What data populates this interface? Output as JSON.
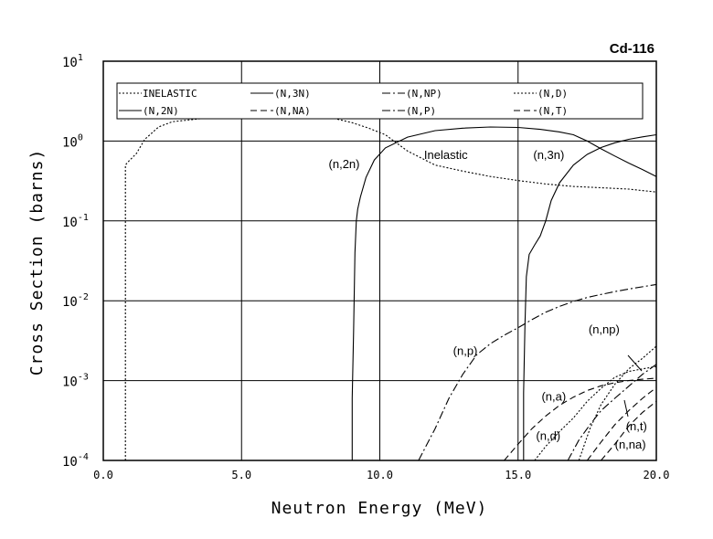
{
  "chart_data": {
    "type": "line",
    "title": "Cd-116",
    "xlabel": "Neutron Energy (MeV)",
    "ylabel": "Cross Section (barns)",
    "xlim": [
      0.0,
      20.0
    ],
    "ylim": [
      0.0001,
      10
    ],
    "yscale": "log",
    "grid": true,
    "legend_position": "top",
    "xticks": [
      "0.0",
      "5.0",
      "10.0",
      "15.0",
      "20.0"
    ],
    "yticks": [
      {
        "base": "10",
        "exp": "1",
        "value": 10
      },
      {
        "base": "10",
        "exp": "0",
        "value": 1
      },
      {
        "base": "10",
        "exp": "-1",
        "value": 0.1
      },
      {
        "base": "10",
        "exp": "-2",
        "value": 0.01
      },
      {
        "base": "10",
        "exp": "-3",
        "value": 0.001
      },
      {
        "base": "10",
        "exp": "-4",
        "value": 0.0001
      }
    ],
    "legend": [
      {
        "label": "INELASTIC",
        "dash": "dotted"
      },
      {
        "label": "(N,3N)",
        "dash": "solid"
      },
      {
        "label": "(N,NP)",
        "dash": "dashdot"
      },
      {
        "label": "(N,D)",
        "dash": "dotted"
      },
      {
        "label": "(N,2N)",
        "dash": "solid"
      },
      {
        "label": "(N,NA)",
        "dash": "dashed"
      },
      {
        "label": "(N,P)",
        "dash": "dashdot"
      },
      {
        "label": "(N,T)",
        "dash": "dashed"
      }
    ],
    "annotations": [
      {
        "text": "Inelastic",
        "x": 11.6,
        "y": 0.6
      },
      {
        "text": "(n,2n)",
        "x": 8.15,
        "y": 0.46
      },
      {
        "text": "(n,3n)",
        "x": 15.55,
        "y": 0.6
      },
      {
        "text": "(n,p)",
        "x": 12.65,
        "y": 0.0021
      },
      {
        "text": "(n,np)",
        "x": 17.55,
        "y": 0.0039
      },
      {
        "text": "(n,a)",
        "x": 15.85,
        "y": 0.00056
      },
      {
        "text": "(n,d)",
        "x": 15.65,
        "y": 0.00018
      },
      {
        "text": "(n,t)",
        "x": 18.9,
        "y": 0.00024
      },
      {
        "text": "(n,na)",
        "x": 18.5,
        "y": 0.00014
      }
    ],
    "series": [
      {
        "dash": "dotted",
        "points": [
          [
            0.8,
            0.0001
          ],
          [
            0.8,
            0.5
          ],
          [
            0.9,
            0.55
          ],
          [
            1.2,
            0.7
          ],
          [
            1.5,
            1.05
          ],
          [
            2.0,
            1.5
          ],
          [
            2.5,
            1.75
          ],
          [
            3.5,
            1.9
          ],
          [
            5.0,
            2.0
          ],
          [
            6.5,
            1.98
          ],
          [
            7.5,
            1.93
          ],
          [
            8.4,
            1.9
          ],
          [
            9.0,
            1.7
          ],
          [
            9.6,
            1.45
          ],
          [
            10.2,
            1.2
          ],
          [
            11.0,
            0.75
          ],
          [
            12.0,
            0.5
          ],
          [
            13.0,
            0.42
          ],
          [
            14.0,
            0.36
          ],
          [
            15.0,
            0.32
          ],
          [
            16.0,
            0.29
          ],
          [
            17.0,
            0.27
          ],
          [
            18.0,
            0.26
          ],
          [
            19.0,
            0.25
          ],
          [
            20.0,
            0.23
          ]
        ]
      },
      {
        "dash": "solid",
        "points": [
          [
            9.0,
            0.0001
          ],
          [
            9.0,
            0.0006
          ],
          [
            9.05,
            0.004
          ],
          [
            9.1,
            0.04
          ],
          [
            9.15,
            0.1
          ],
          [
            9.2,
            0.14
          ],
          [
            9.3,
            0.2
          ],
          [
            9.5,
            0.35
          ],
          [
            9.8,
            0.58
          ],
          [
            10.2,
            0.82
          ],
          [
            11.0,
            1.12
          ],
          [
            12.0,
            1.35
          ],
          [
            13.0,
            1.45
          ],
          [
            14.0,
            1.5
          ],
          [
            15.0,
            1.48
          ],
          [
            15.8,
            1.4
          ],
          [
            16.5,
            1.3
          ],
          [
            17.0,
            1.2
          ],
          [
            17.5,
            1.0
          ],
          [
            18.0,
            0.8
          ],
          [
            18.5,
            0.65
          ],
          [
            19.0,
            0.53
          ],
          [
            19.5,
            0.44
          ],
          [
            20.0,
            0.36
          ]
        ]
      },
      {
        "dash": "solid",
        "points": [
          [
            15.2,
            0.0001
          ],
          [
            15.2,
            0.0007
          ],
          [
            15.25,
            0.005
          ],
          [
            15.3,
            0.02
          ],
          [
            15.4,
            0.038
          ],
          [
            15.6,
            0.05
          ],
          [
            15.8,
            0.065
          ],
          [
            16.0,
            0.1
          ],
          [
            16.2,
            0.18
          ],
          [
            16.5,
            0.3
          ],
          [
            17.0,
            0.5
          ],
          [
            17.5,
            0.68
          ],
          [
            18.0,
            0.83
          ],
          [
            18.5,
            0.95
          ],
          [
            19.0,
            1.05
          ],
          [
            19.5,
            1.13
          ],
          [
            20.0,
            1.2
          ]
        ]
      },
      {
        "dash": "dashdot",
        "points": [
          [
            11.4,
            0.0001
          ],
          [
            12.0,
            0.00025
          ],
          [
            12.5,
            0.0006
          ],
          [
            13.0,
            0.0012
          ],
          [
            13.5,
            0.0021
          ],
          [
            14.0,
            0.0029
          ],
          [
            14.5,
            0.0037
          ],
          [
            15.0,
            0.0046
          ],
          [
            15.5,
            0.0058
          ],
          [
            16.0,
            0.0072
          ],
          [
            16.5,
            0.0085
          ],
          [
            17.0,
            0.0098
          ],
          [
            17.5,
            0.011
          ],
          [
            18.0,
            0.012
          ],
          [
            18.5,
            0.013
          ],
          [
            19.0,
            0.014
          ],
          [
            20.0,
            0.016
          ]
        ]
      },
      {
        "dash": "dotted",
        "points": [
          [
            17.2,
            0.0001
          ],
          [
            17.6,
            0.00025
          ],
          [
            18.0,
            0.0005
          ],
          [
            18.5,
            0.0009
          ],
          [
            19.0,
            0.0014
          ],
          [
            19.5,
            0.0019
          ],
          [
            20.0,
            0.0027
          ]
        ]
      },
      {
        "dash": "dashed",
        "points": [
          [
            14.5,
            0.0001
          ],
          [
            15.0,
            0.00016
          ],
          [
            15.5,
            0.00025
          ],
          [
            16.0,
            0.00036
          ],
          [
            16.5,
            0.00049
          ],
          [
            17.0,
            0.00062
          ],
          [
            17.5,
            0.00075
          ],
          [
            18.0,
            0.00086
          ],
          [
            18.5,
            0.00094
          ],
          [
            19.0,
            0.001
          ],
          [
            19.5,
            0.00104
          ],
          [
            20.0,
            0.00107
          ]
        ]
      },
      {
        "dash": "dotted",
        "points": [
          [
            15.6,
            0.0001
          ],
          [
            16.0,
            0.00015
          ],
          [
            16.5,
            0.00023
          ],
          [
            17.0,
            0.00034
          ],
          [
            17.5,
            0.00055
          ],
          [
            18.0,
            0.0008
          ],
          [
            18.5,
            0.0011
          ],
          [
            19.0,
            0.0013
          ],
          [
            19.5,
            0.0014
          ],
          [
            20.0,
            0.0015
          ]
        ]
      },
      {
        "dash": "dashdot",
        "points": [
          [
            16.8,
            0.0001
          ],
          [
            17.2,
            0.00018
          ],
          [
            17.6,
            0.00028
          ],
          [
            18.0,
            0.00042
          ],
          [
            18.5,
            0.0006
          ],
          [
            19.0,
            0.00085
          ],
          [
            19.5,
            0.0012
          ],
          [
            20.0,
            0.0016
          ]
        ]
      },
      {
        "dash": "dashed",
        "points": [
          [
            17.5,
            0.0001
          ],
          [
            18.0,
            0.00017
          ],
          [
            18.5,
            0.00028
          ],
          [
            19.0,
            0.00042
          ],
          [
            19.5,
            0.0006
          ],
          [
            20.0,
            0.00082
          ]
        ]
      },
      {
        "dash": "dashed",
        "points": [
          [
            18.0,
            0.0001
          ],
          [
            18.5,
            0.00016
          ],
          [
            19.0,
            0.00027
          ],
          [
            19.5,
            0.0004
          ],
          [
            20.0,
            0.00055
          ]
        ]
      }
    ]
  }
}
